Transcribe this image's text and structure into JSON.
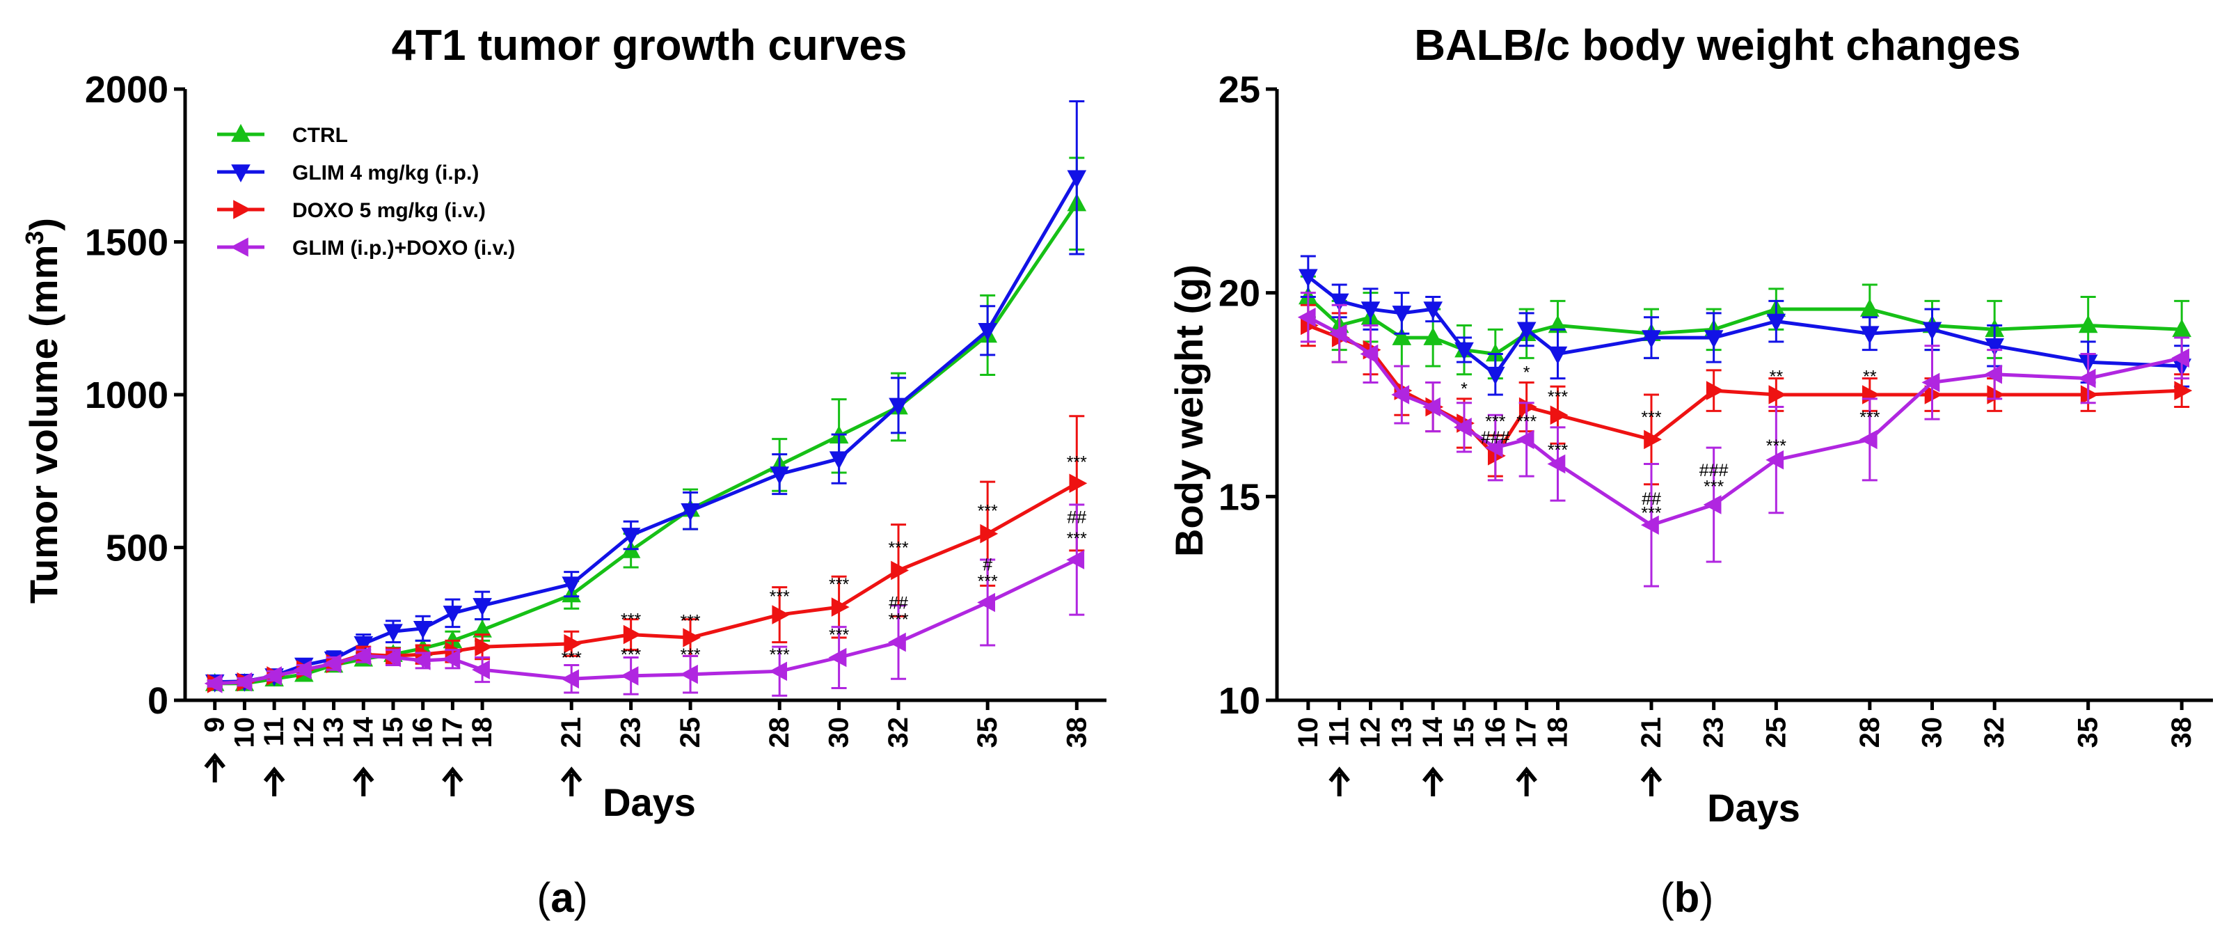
{
  "chart_data": [
    {
      "panel": "(a)",
      "panel_letter": "a",
      "type": "line",
      "title": "4T1 tumor growth curves",
      "xlabel": "Days",
      "ylabel": "Tumor volume (mm³)",
      "ylabel_main": "Tumor volume (mm",
      "ylabel_sup": "3",
      "ylabel_end": ")",
      "ylim": [
        0,
        2000
      ],
      "yticks": [
        0,
        500,
        1000,
        1500,
        2000
      ],
      "x": [
        9,
        10,
        11,
        12,
        13,
        14,
        15,
        16,
        17,
        18,
        21,
        23,
        25,
        28,
        30,
        32,
        35,
        38
      ],
      "xmin": 8,
      "xmax": 39,
      "treatment_days": [
        9,
        11,
        14,
        17,
        21
      ],
      "legend_position": "top-left",
      "grid": false,
      "series": [
        {
          "name": "CTRL",
          "color": "#16c016",
          "marker": "triangle-up",
          "values": [
            55,
            55,
            70,
            85,
            115,
            135,
            150,
            170,
            195,
            230,
            345,
            490,
            625,
            770,
            865,
            960,
            1195,
            1625
          ],
          "errors": [
            10,
            10,
            12,
            12,
            15,
            20,
            22,
            25,
            30,
            35,
            45,
            55,
            65,
            85,
            120,
            110,
            130,
            150
          ]
        },
        {
          "name": "GLIM 4 mg/kg (i.p.)",
          "color": "#1212e6",
          "marker": "triangle-down",
          "values": [
            60,
            62,
            80,
            115,
            135,
            185,
            225,
            235,
            285,
            310,
            380,
            540,
            620,
            740,
            790,
            965,
            1210,
            1710
          ],
          "errors": [
            15,
            15,
            15,
            20,
            25,
            30,
            35,
            40,
            45,
            45,
            40,
            45,
            60,
            65,
            80,
            90,
            80,
            250
          ]
        },
        {
          "name": "DOXO 5 mg/kg (i.v.)",
          "color": "#ee1212",
          "marker": "triangle-right",
          "values": [
            55,
            60,
            80,
            100,
            120,
            150,
            145,
            150,
            160,
            175,
            185,
            215,
            205,
            280,
            305,
            425,
            545,
            710
          ],
          "errors": [
            10,
            12,
            15,
            15,
            20,
            25,
            25,
            30,
            35,
            40,
            40,
            50,
            60,
            90,
            100,
            150,
            170,
            220
          ]
        },
        {
          "name": "GLIM (i.p.)+DOXO (i.v.)",
          "color": "#b026e0",
          "marker": "triangle-left",
          "values": [
            55,
            60,
            80,
            100,
            120,
            145,
            140,
            130,
            135,
            100,
            70,
            80,
            85,
            95,
            140,
            190,
            320,
            460
          ],
          "errors": [
            10,
            12,
            15,
            15,
            20,
            20,
            25,
            25,
            30,
            40,
            45,
            60,
            60,
            80,
            100,
            120,
            140,
            180
          ]
        }
      ],
      "annotations": [
        {
          "x": 21,
          "y": 120,
          "text": "***"
        },
        {
          "x": 23,
          "y": 245,
          "text": "***"
        },
        {
          "x": 23,
          "y": 130,
          "text": "***"
        },
        {
          "x": 25,
          "y": 240,
          "text": "***"
        },
        {
          "x": 25,
          "y": 130,
          "text": "***"
        },
        {
          "x": 28,
          "y": 320,
          "text": "***"
        },
        {
          "x": 28,
          "y": 130,
          "text": "***"
        },
        {
          "x": 30,
          "y": 360,
          "text": "***"
        },
        {
          "x": 30,
          "y": 195,
          "text": "***"
        },
        {
          "x": 32,
          "y": 480,
          "text": "***"
        },
        {
          "x": 32,
          "y": 300,
          "text": "##"
        },
        {
          "x": 32,
          "y": 245,
          "text": "***"
        },
        {
          "x": 35,
          "y": 600,
          "text": "***"
        },
        {
          "x": 35,
          "y": 425,
          "text": "#"
        },
        {
          "x": 35,
          "y": 370,
          "text": "***"
        },
        {
          "x": 38,
          "y": 760,
          "text": "***"
        },
        {
          "x": 38,
          "y": 580,
          "text": "##"
        },
        {
          "x": 38,
          "y": 510,
          "text": "***"
        }
      ]
    },
    {
      "panel": "(b)",
      "panel_letter": "b",
      "type": "line",
      "title": "BALB/c body weight changes",
      "xlabel": "Days",
      "ylabel": "Body weight (g)",
      "ylim": [
        10,
        25
      ],
      "yticks": [
        10,
        15,
        20,
        25
      ],
      "x": [
        10,
        11,
        12,
        13,
        14,
        15,
        16,
        17,
        18,
        21,
        23,
        25,
        28,
        30,
        32,
        35,
        38
      ],
      "xmin": 9,
      "xmax": 39,
      "treatment_days": [
        11,
        14,
        17,
        21
      ],
      "grid": false,
      "series": [
        {
          "name": "CTRL",
          "color": "#16c016",
          "marker": "triangle-up",
          "values": [
            19.9,
            19.2,
            19.4,
            18.9,
            18.9,
            18.6,
            18.5,
            19.0,
            19.2,
            19.0,
            19.1,
            19.6,
            19.6,
            19.2,
            19.1,
            19.2,
            19.1
          ],
          "errors": [
            0.5,
            0.6,
            0.6,
            0.7,
            0.7,
            0.6,
            0.6,
            0.6,
            0.6,
            0.6,
            0.5,
            0.5,
            0.6,
            0.6,
            0.7,
            0.7,
            0.7
          ]
        },
        {
          "name": "GLIM 4 mg/kg (i.p.)",
          "color": "#1212e6",
          "marker": "triangle-down",
          "values": [
            20.4,
            19.8,
            19.6,
            19.5,
            19.6,
            18.6,
            18.0,
            19.1,
            18.5,
            18.9,
            18.9,
            19.3,
            19.0,
            19.1,
            18.7,
            18.3,
            18.2
          ],
          "errors": [
            0.5,
            0.4,
            0.5,
            0.5,
            0.3,
            0.3,
            0.5,
            0.4,
            0.6,
            0.5,
            0.6,
            0.5,
            0.4,
            0.5,
            0.5,
            0.5,
            0.5
          ]
        },
        {
          "name": "DOXO 5 mg/kg (i.v.)",
          "color": "#ee1212",
          "marker": "triangle-right",
          "values": [
            19.2,
            18.9,
            18.6,
            17.6,
            17.2,
            16.8,
            16.0,
            17.2,
            17.0,
            16.4,
            17.6,
            17.5,
            17.5,
            17.5,
            17.5,
            17.5,
            17.6
          ],
          "errors": [
            0.5,
            0.6,
            0.6,
            0.6,
            0.6,
            0.6,
            0.5,
            0.6,
            0.7,
            1.1,
            0.5,
            0.4,
            0.4,
            0.4,
            0.4,
            0.4,
            0.4
          ]
        },
        {
          "name": "GLIM (i.p.)+DOXO (i.v.)",
          "color": "#b026e0",
          "marker": "triangle-left",
          "values": [
            19.4,
            19.0,
            18.5,
            17.5,
            17.2,
            16.7,
            16.2,
            16.4,
            15.8,
            14.3,
            14.8,
            15.9,
            16.4,
            17.8,
            18.0,
            17.9,
            18.4
          ],
          "errors": [
            0.6,
            0.7,
            0.7,
            0.7,
            0.6,
            0.6,
            0.8,
            0.9,
            0.9,
            1.5,
            1.4,
            1.3,
            1.0,
            0.9,
            0.6,
            0.6,
            0.5
          ]
        }
      ],
      "annotations": [
        {
          "x": 15,
          "y": 17.5,
          "text": "*"
        },
        {
          "x": 16,
          "y": 16.7,
          "text": "***"
        },
        {
          "x": 16,
          "y": 16.3,
          "text": "###"
        },
        {
          "x": 17,
          "y": 17.9,
          "text": "*"
        },
        {
          "x": 17,
          "y": 16.7,
          "text": "***"
        },
        {
          "x": 18,
          "y": 17.3,
          "text": "***"
        },
        {
          "x": 18,
          "y": 16.0,
          "text": "***"
        },
        {
          "x": 21,
          "y": 16.8,
          "text": "***"
        },
        {
          "x": 21,
          "y": 14.8,
          "text": "##"
        },
        {
          "x": 21,
          "y": 14.45,
          "text": "***"
        },
        {
          "x": 23,
          "y": 15.5,
          "text": "###"
        },
        {
          "x": 23,
          "y": 15.1,
          "text": "***"
        },
        {
          "x": 25,
          "y": 17.8,
          "text": "**"
        },
        {
          "x": 25,
          "y": 16.1,
          "text": "***"
        },
        {
          "x": 28,
          "y": 17.8,
          "text": "**"
        },
        {
          "x": 28,
          "y": 16.8,
          "text": "***"
        }
      ]
    }
  ]
}
